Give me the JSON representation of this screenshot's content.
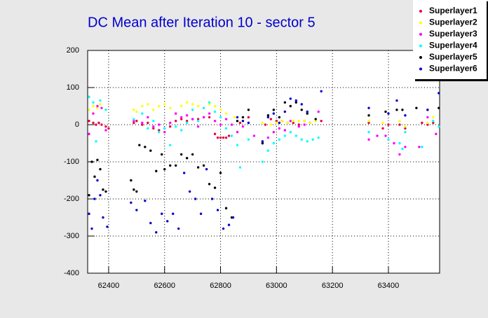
{
  "chart_data": {
    "type": "scatter",
    "title": "DC Mean after Iteration 10 - sector 5",
    "xlim": [
      62325,
      63583
    ],
    "xticks": [
      62400,
      62600,
      62800,
      63000,
      63200,
      63400
    ],
    "ylim": [
      -400,
      200
    ],
    "yticks": [
      -400,
      -300,
      -200,
      -100,
      0,
      100,
      200
    ],
    "grid": true,
    "legend": "top-right",
    "series": [
      {
        "name": "Superlayer1",
        "color": "#e8003c",
        "x": [
          62330,
          62345,
          62355,
          62365,
          62375,
          62390,
          62400,
          62490,
          62500,
          62520,
          62540,
          62560,
          62580,
          62600,
          62620,
          62640,
          62660,
          62680,
          62700,
          62720,
          62740,
          62760,
          62780,
          62790,
          62800,
          62810,
          62820,
          62830,
          62870,
          62900,
          62960,
          62980,
          63000,
          63020,
          63040,
          63060,
          63080,
          63100,
          63120,
          63160,
          63330,
          63380,
          63400,
          63440,
          63460,
          63520,
          63540,
          63560
        ],
        "values": [
          10,
          5,
          0,
          5,
          0,
          -5,
          -10,
          5,
          10,
          0,
          5,
          -10,
          -15,
          -10,
          -5,
          10,
          15,
          10,
          15,
          15,
          20,
          20,
          -25,
          -35,
          -35,
          -35,
          -35,
          -30,
          5,
          20,
          0,
          15,
          10,
          10,
          5,
          5,
          0,
          10,
          5,
          10,
          5,
          -10,
          0,
          0,
          -10,
          5,
          0,
          5
        ]
      },
      {
        "name": "Superlayer2",
        "color": "#ffff00",
        "x": [
          62330,
          62345,
          62360,
          62370,
          62390,
          62490,
          62500,
          62520,
          62540,
          62560,
          62580,
          62600,
          62620,
          62640,
          62660,
          62680,
          62700,
          62720,
          62740,
          62760,
          62780,
          62800,
          62820,
          62850,
          62880,
          62950,
          62980,
          63000,
          63020,
          63040,
          63060,
          63080,
          63100,
          63120,
          63140,
          63330,
          63380,
          63440,
          63460,
          63540,
          63560
        ],
        "values": [
          40,
          50,
          45,
          55,
          40,
          40,
          35,
          50,
          55,
          40,
          50,
          55,
          45,
          30,
          50,
          60,
          55,
          50,
          45,
          55,
          50,
          40,
          30,
          20,
          10,
          5,
          0,
          5,
          10,
          5,
          10,
          10,
          10,
          5,
          10,
          10,
          5,
          10,
          -5,
          5,
          20
        ]
      },
      {
        "name": "Superlayer3",
        "color": "#ff00ff",
        "x": [
          62330,
          62345,
          62360,
          62375,
          62390,
          62490,
          62520,
          62540,
          62560,
          62580,
          62600,
          62620,
          62640,
          62660,
          62680,
          62700,
          62720,
          62740,
          62760,
          62780,
          62800,
          62820,
          62840,
          62860,
          62880,
          62920,
          62950,
          62970,
          62990,
          63010,
          63030,
          63050,
          63080,
          63100,
          63150,
          63330,
          63360,
          63390,
          63420,
          63440,
          63460,
          63510,
          63540,
          63570
        ],
        "values": [
          -25,
          30,
          50,
          45,
          -15,
          10,
          5,
          20,
          -5,
          0,
          -20,
          5,
          30,
          20,
          25,
          15,
          -5,
          20,
          30,
          10,
          0,
          15,
          0,
          -20,
          -5,
          -30,
          -50,
          -35,
          -20,
          -10,
          -15,
          10,
          -5,
          0,
          35,
          -40,
          -30,
          -30,
          -50,
          -80,
          -60,
          -60,
          20,
          -25
        ]
      },
      {
        "name": "Superlayer4",
        "color": "#00ffff",
        "x": [
          62330,
          62345,
          62355,
          62370,
          62390,
          62490,
          62520,
          62540,
          62560,
          62580,
          62600,
          62620,
          62640,
          62660,
          62680,
          62700,
          62720,
          62740,
          62760,
          62780,
          62800,
          62820,
          62840,
          62860,
          62870,
          62900,
          62950,
          62970,
          62990,
          63010,
          63030,
          63050,
          63070,
          63090,
          63110,
          63130,
          63150,
          63330,
          63400,
          63440,
          63450,
          63460,
          63520,
          63560,
          63580
        ],
        "values": [
          75,
          60,
          -45,
          65,
          40,
          15,
          30,
          -10,
          10,
          -20,
          -10,
          -55,
          -5,
          -15,
          5,
          40,
          10,
          45,
          60,
          35,
          20,
          -10,
          -30,
          -55,
          -115,
          -40,
          -100,
          -70,
          -50,
          -40,
          -30,
          -20,
          -30,
          -40,
          -45,
          -40,
          -35,
          -20,
          -40,
          -50,
          -65,
          -20,
          -60,
          10,
          -5
        ]
      },
      {
        "name": "Superlayer5",
        "color": "#000000",
        "x": [
          62330,
          62340,
          62350,
          62360,
          62370,
          62380,
          62390,
          62480,
          62490,
          62500,
          62510,
          62530,
          62550,
          62570,
          62590,
          62600,
          62620,
          62640,
          62660,
          62680,
          62700,
          62720,
          62740,
          62760,
          62780,
          62800,
          62820,
          62840,
          62860,
          62880,
          62900,
          62950,
          62970,
          62990,
          63010,
          63030,
          63050,
          63070,
          63090,
          63110,
          63140,
          63330,
          63390,
          63430,
          63450,
          63500,
          63540,
          63580
        ],
        "values": [
          -190,
          -100,
          -140,
          -95,
          -120,
          -175,
          -180,
          -150,
          -175,
          -180,
          -55,
          -60,
          -70,
          -125,
          -80,
          -120,
          -110,
          -110,
          -80,
          -90,
          -80,
          -115,
          -110,
          -160,
          -170,
          -130,
          -225,
          -250,
          10,
          20,
          40,
          -50,
          25,
          40,
          20,
          60,
          50,
          60,
          40,
          30,
          15,
          25,
          35,
          40,
          40,
          45,
          40,
          45
        ]
      },
      {
        "name": "Superlayer6",
        "color": "#0000cc",
        "x": [
          62330,
          62340,
          62350,
          62360,
          62370,
          62380,
          62395,
          62480,
          62500,
          62530,
          62550,
          62570,
          62590,
          62610,
          62630,
          62650,
          62670,
          62690,
          62710,
          62730,
          62750,
          62770,
          62790,
          62810,
          62830,
          62845,
          62860,
          62880,
          62900,
          62950,
          62970,
          62990,
          63010,
          63030,
          63050,
          63070,
          63090,
          63110,
          63160,
          63330,
          63400,
          63430,
          63460,
          63540,
          63580
        ],
        "values": [
          -240,
          -280,
          -200,
          -150,
          -190,
          -250,
          -275,
          -210,
          -230,
          -205,
          -265,
          -290,
          -240,
          -260,
          -240,
          -280,
          -130,
          -180,
          -200,
          -240,
          -120,
          -200,
          -230,
          -280,
          -270,
          -250,
          20,
          10,
          5,
          -45,
          20,
          30,
          5,
          35,
          70,
          65,
          55,
          35,
          90,
          45,
          30,
          65,
          25,
          40,
          85
        ]
      }
    ]
  }
}
